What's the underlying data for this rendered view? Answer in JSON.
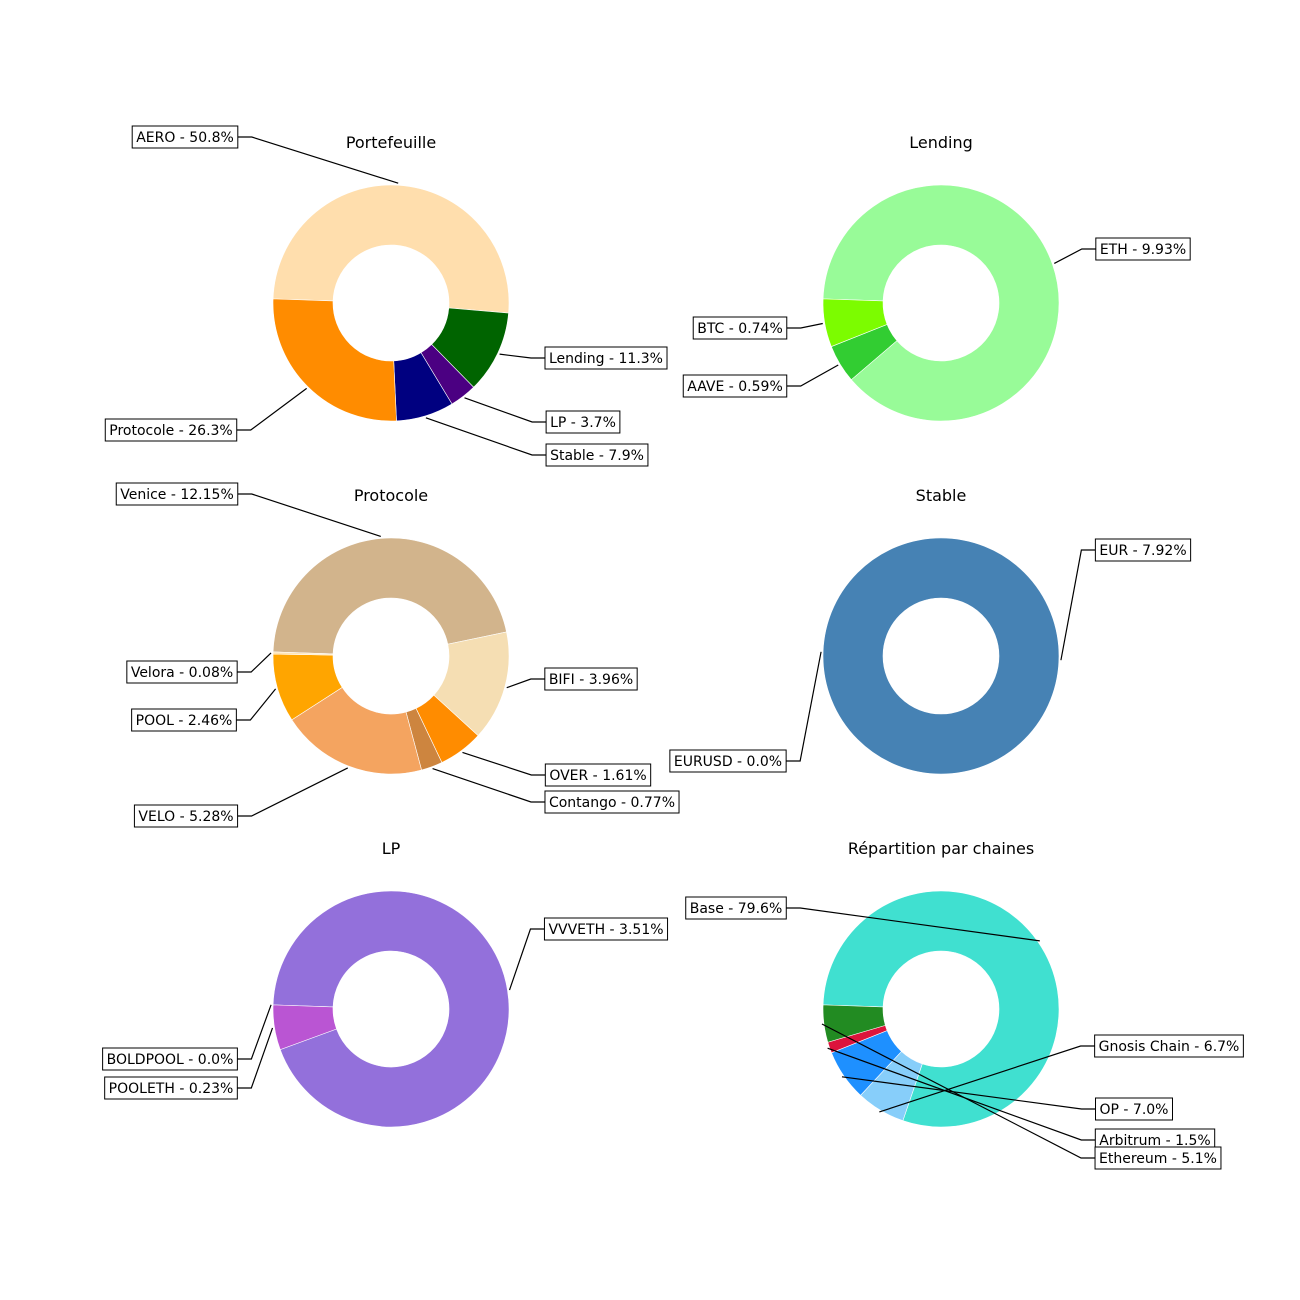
{
  "chart_data": [
    {
      "type": "pie",
      "title": "Portefeuille",
      "slices": [
        {
          "label": "AERO - 50.8%",
          "value": 50.8,
          "color": "#FFDEAD"
        },
        {
          "label": "Lending - 11.3%",
          "value": 11.3,
          "color": "#006400"
        },
        {
          "label": "LP - 3.7%",
          "value": 3.7,
          "color": "#4B0082"
        },
        {
          "label": "Stable - 7.9%",
          "value": 7.9,
          "color": "#000080"
        },
        {
          "label": "Protocole - 26.3%",
          "value": 26.3,
          "color": "#FF8C00"
        }
      ]
    },
    {
      "type": "pie",
      "title": "Lending",
      "slices": [
        {
          "label": "ETH - 9.93%",
          "value": 9.93,
          "color": "#98FB98"
        },
        {
          "label": "AAVE - 0.59%",
          "value": 0.59,
          "color": "#32CD32"
        },
        {
          "label": "BTC - 0.74%",
          "value": 0.74,
          "color": "#7CFC00"
        }
      ]
    },
    {
      "type": "pie",
      "title": "Protocole",
      "slices": [
        {
          "label": "Venice - 12.15%",
          "value": 12.15,
          "color": "#D2B48C"
        },
        {
          "label": "BIFI - 3.96%",
          "value": 3.96,
          "color": "#F5DEB3"
        },
        {
          "label": "OVER - 1.61%",
          "value": 1.61,
          "color": "#FF8C00"
        },
        {
          "label": "Contango - 0.77%",
          "value": 0.77,
          "color": "#CD853F"
        },
        {
          "label": "VELO - 5.28%",
          "value": 5.28,
          "color": "#F4A460"
        },
        {
          "label": "POOL - 2.46%",
          "value": 2.46,
          "color": "#FFA500"
        },
        {
          "label": "Velora - 0.08%",
          "value": 0.08,
          "color": "#FFE4B5"
        }
      ]
    },
    {
      "type": "pie",
      "title": "Stable",
      "slices": [
        {
          "label": "EUR - 7.92%",
          "value": 7.92,
          "color": "#4682B4"
        },
        {
          "label": "EURUSD - 0.0%",
          "value": 0.0,
          "color": "#87CEEB"
        }
      ]
    },
    {
      "type": "pie",
      "title": "LP",
      "slices": [
        {
          "label": "VVVETH - 3.51%",
          "value": 3.51,
          "color": "#9370DB"
        },
        {
          "label": "POOLETH - 0.23%",
          "value": 0.23,
          "color": "#BA55D3"
        },
        {
          "label": "BOLDPOOL - 0.0%",
          "value": 0.0,
          "color": "#DDA0DD"
        }
      ]
    },
    {
      "type": "pie",
      "title": "Répartition par chaines",
      "slices": [
        {
          "label": "Base - 79.6%",
          "value": 79.6,
          "color": "#40E0D0"
        },
        {
          "label": "Gnosis Chain - 6.7%",
          "value": 6.7,
          "color": "#87CEFA"
        },
        {
          "label": "OP - 7.0%",
          "value": 7.0,
          "color": "#1E90FF"
        },
        {
          "label": "Arbitrum - 1.5%",
          "value": 1.5,
          "color": "#DC143C"
        },
        {
          "label": "Ethereum - 5.1%",
          "value": 5.1,
          "color": "#228B22"
        }
      ]
    }
  ]
}
